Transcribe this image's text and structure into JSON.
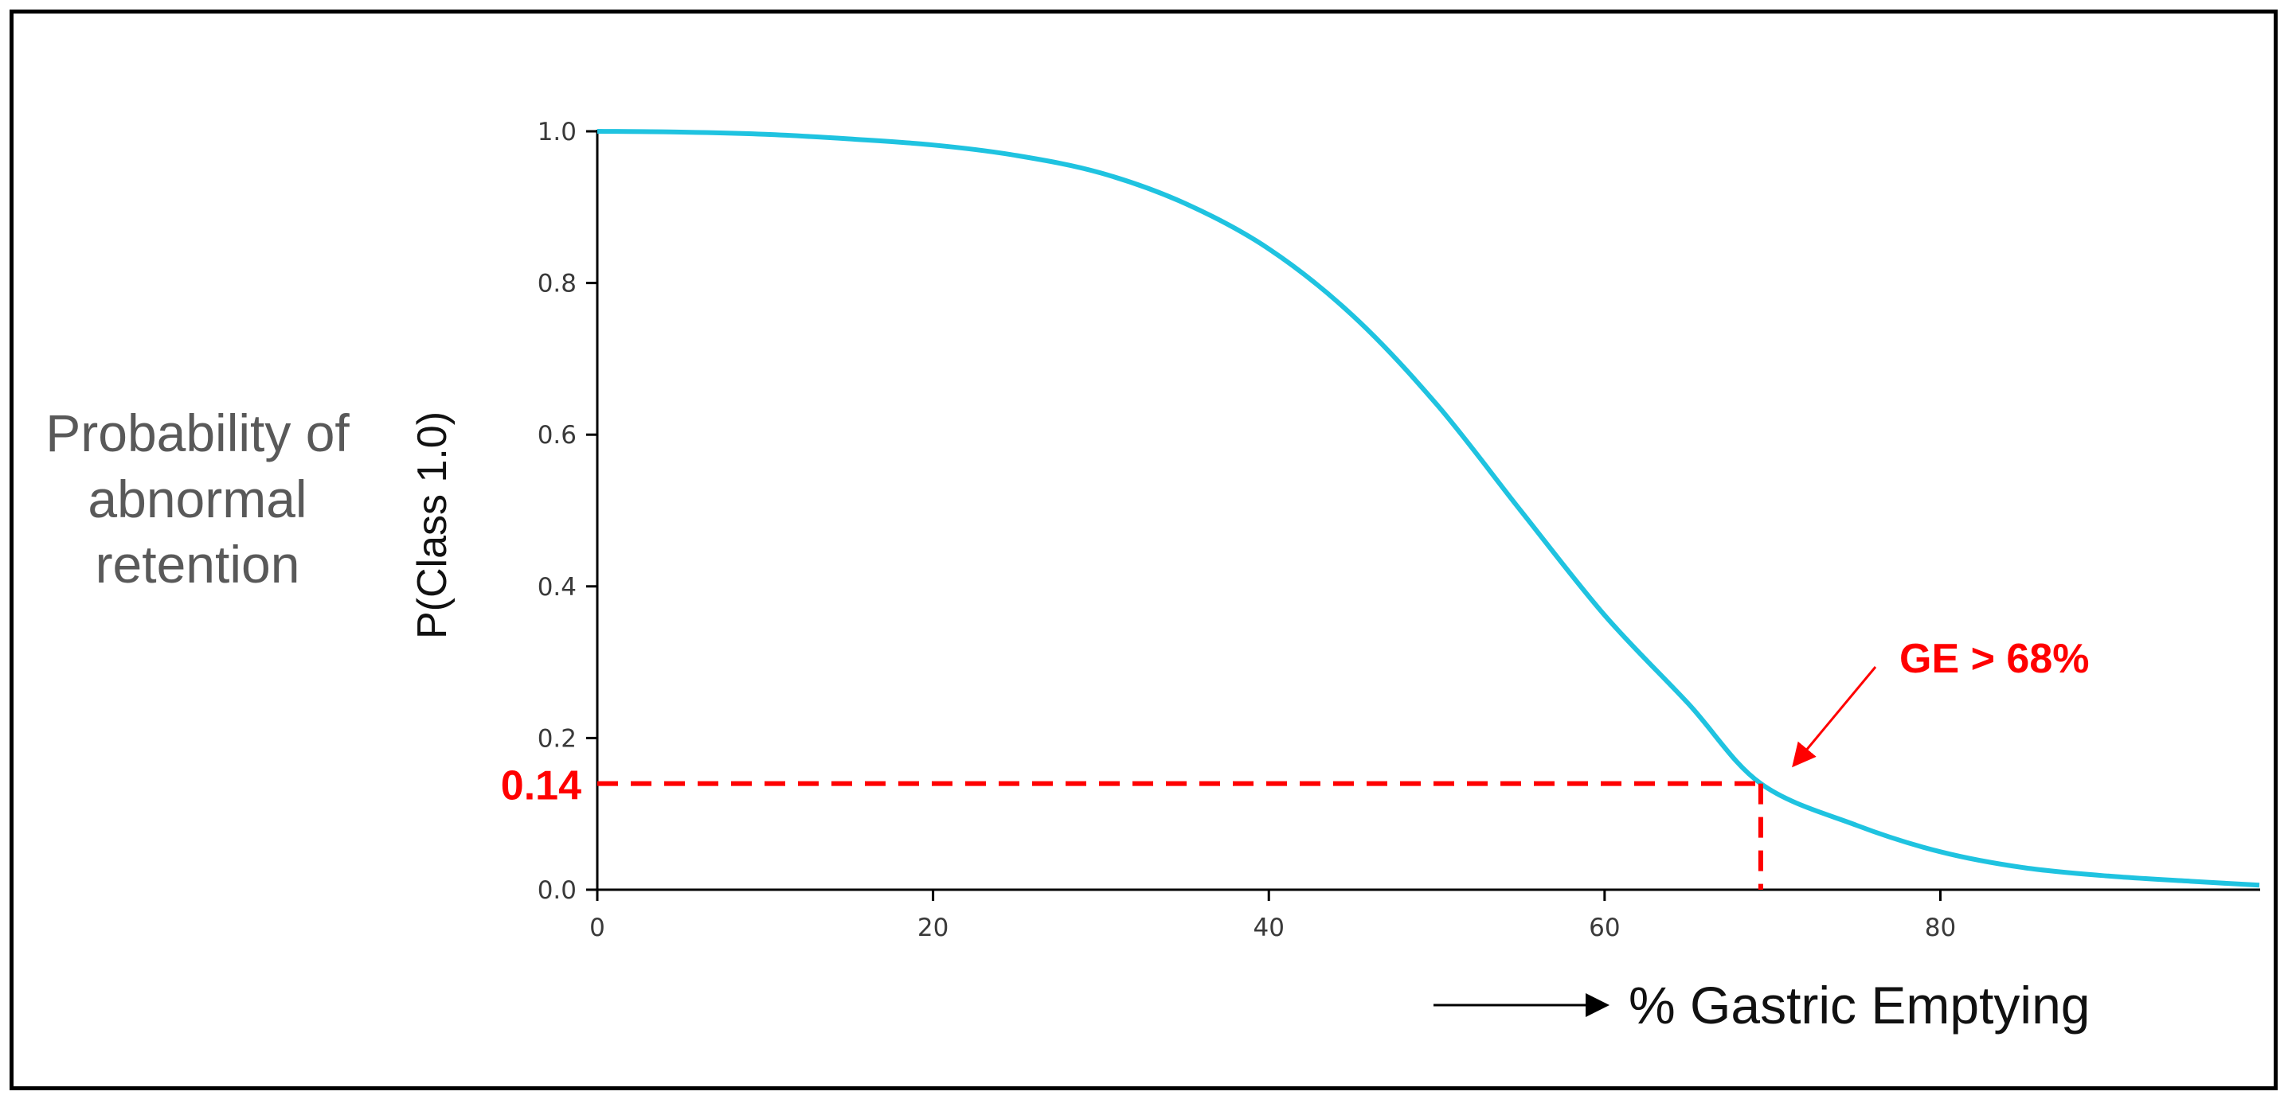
{
  "side_label": [
    "Probability of",
    "abnormal",
    "retention"
  ],
  "colors": {
    "curve": "#1fc3e0",
    "annotation": "#ff0000",
    "axis": "#000000"
  },
  "chart_data": {
    "type": "line",
    "xlabel": "% Gastric Emptying",
    "ylabel": "P(Class 1.0)",
    "xlim": [
      0,
      99
    ],
    "ylim": [
      0,
      1.0
    ],
    "x_ticks": [
      0,
      20,
      40,
      60,
      80
    ],
    "y_ticks": [
      0.0,
      0.2,
      0.4,
      0.6,
      0.8,
      1.0
    ],
    "grid": false,
    "series": [
      {
        "x": [
          0,
          5,
          10,
          15,
          20,
          25,
          30,
          35,
          40,
          45,
          50,
          55,
          60,
          65,
          69.3,
          75,
          80,
          85,
          90,
          95,
          99
        ],
        "y": [
          1.0,
          0.999,
          0.996,
          0.99,
          0.982,
          0.968,
          0.945,
          0.905,
          0.845,
          0.757,
          0.64,
          0.5,
          0.362,
          0.245,
          0.14,
          0.085,
          0.05,
          0.029,
          0.018,
          0.011,
          0.006
        ]
      }
    ],
    "annotations": {
      "threshold_y_label": "0.14",
      "threshold_y": 0.14,
      "threshold_x": 69.3,
      "arrow_label": "GE > 68%"
    }
  }
}
